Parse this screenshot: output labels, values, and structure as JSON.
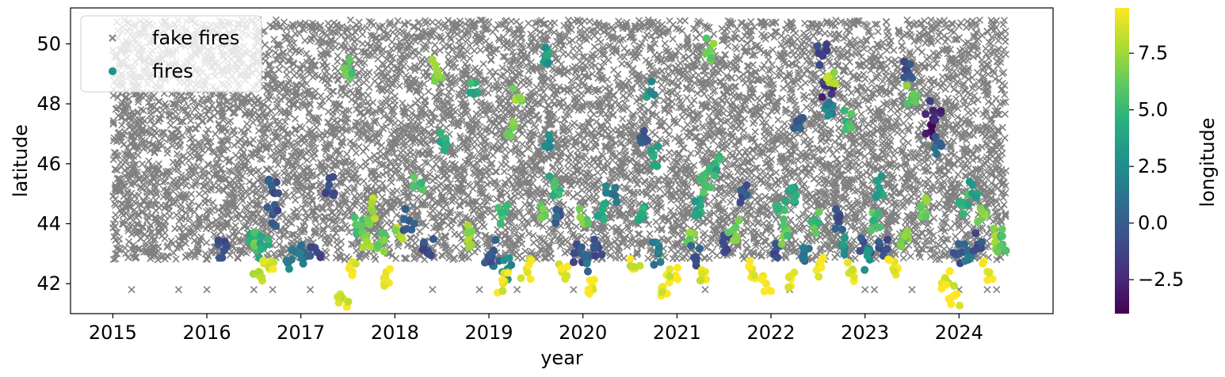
{
  "chart_data": {
    "type": "scatter",
    "xlabel": "year",
    "ylabel": "latitude",
    "xlim": [
      2014.55,
      2025.0
    ],
    "ylim": [
      41.0,
      51.2
    ],
    "x_ticks": [
      2015,
      2016,
      2017,
      2018,
      2019,
      2020,
      2021,
      2022,
      2023,
      2024
    ],
    "y_ticks": [
      42,
      44,
      46,
      48,
      50
    ],
    "legend_position": "top-left",
    "grid": false,
    "series": [
      {
        "name": "fake fires",
        "marker": "x",
        "color": "#808080",
        "count_estimate": 9000,
        "x_range": [
          2015.0,
          2024.5
        ],
        "y_range": [
          41.8,
          50.8
        ],
        "points": [
          [
            2015.2,
            41.8
          ],
          [
            2015.7,
            41.8
          ],
          [
            2016.0,
            41.8
          ],
          [
            2016.5,
            41.8
          ],
          [
            2016.7,
            41.8
          ],
          [
            2017.1,
            41.8
          ],
          [
            2018.4,
            41.8
          ],
          [
            2018.9,
            41.8
          ],
          [
            2019.3,
            41.8
          ],
          [
            2019.9,
            41.8
          ],
          [
            2021.3,
            41.8
          ],
          [
            2022.2,
            41.8
          ],
          [
            2023.0,
            41.8
          ],
          [
            2023.1,
            41.8
          ],
          [
            2023.5,
            41.8
          ],
          [
            2024.0,
            41.8
          ],
          [
            2024.3,
            41.8
          ],
          [
            2024.4,
            41.8
          ],
          [
            2015.1,
            50.4
          ],
          [
            2016.3,
            49.9
          ],
          [
            2017.5,
            48.8
          ],
          [
            2018.2,
            47.3
          ],
          [
            2019.5,
            46.2
          ],
          [
            2020.1,
            45.3
          ],
          [
            2021.4,
            44.6
          ],
          [
            2022.3,
            43.8
          ],
          [
            2023.6,
            47.9
          ],
          [
            2024.2,
            49.6
          ]
        ]
      },
      {
        "name": "fires",
        "marker": "o",
        "color_by": "longitude",
        "points": [
          [
            2016.18,
            43.1,
            -0.5
          ],
          [
            2016.5,
            43.3,
            5.0
          ],
          [
            2016.55,
            43.4,
            6.0
          ],
          [
            2016.6,
            43.2,
            4.0
          ],
          [
            2016.7,
            45.1,
            -0.5
          ],
          [
            2016.7,
            44.3,
            -0.5
          ],
          [
            2016.55,
            42.4,
            8.5
          ],
          [
            2016.65,
            42.6,
            9.0
          ],
          [
            2016.9,
            42.8,
            1.5
          ],
          [
            2017.05,
            42.9,
            1.0
          ],
          [
            2017.15,
            43.2,
            -0.8
          ],
          [
            2017.3,
            45.3,
            -0.6
          ],
          [
            2017.45,
            41.5,
            9.0
          ],
          [
            2017.55,
            42.4,
            9.3
          ],
          [
            2017.6,
            43.9,
            5.5
          ],
          [
            2017.7,
            43.6,
            7.0
          ],
          [
            2017.5,
            49.2,
            5.8
          ],
          [
            2017.75,
            44.5,
            7.5
          ],
          [
            2017.9,
            42.2,
            9.0
          ],
          [
            2017.85,
            43.4,
            6.5
          ],
          [
            2018.05,
            43.6,
            7.5
          ],
          [
            2018.15,
            44.1,
            -0.3
          ],
          [
            2018.25,
            45.3,
            5.5
          ],
          [
            2018.35,
            43.1,
            -0.6
          ],
          [
            2018.45,
            49.1,
            7.5
          ],
          [
            2018.5,
            46.7,
            4.5
          ],
          [
            2018.8,
            43.6,
            7.8
          ],
          [
            2018.85,
            48.7,
            4.5
          ],
          [
            2019.0,
            42.8,
            0.8
          ],
          [
            2019.05,
            43.1,
            -0.4
          ],
          [
            2019.15,
            44.4,
            5.5
          ],
          [
            2019.2,
            42.5,
            2.5
          ],
          [
            2019.25,
            47.2,
            6.5
          ],
          [
            2019.3,
            48.2,
            7.0
          ],
          [
            2019.15,
            42.0,
            9.2
          ],
          [
            2019.4,
            42.5,
            9.0
          ],
          [
            2019.55,
            44.6,
            6.0
          ],
          [
            2019.6,
            49.6,
            3.5
          ],
          [
            2019.65,
            46.8,
            2.5
          ],
          [
            2019.7,
            45.2,
            4.8
          ],
          [
            2019.75,
            44.3,
            0.0
          ],
          [
            2019.8,
            42.5,
            9.1
          ],
          [
            2019.95,
            43.1,
            -0.6
          ],
          [
            2020.0,
            44.1,
            6.5
          ],
          [
            2020.05,
            42.8,
            1.0
          ],
          [
            2020.1,
            41.9,
            9.3
          ],
          [
            2020.15,
            43.3,
            -0.5
          ],
          [
            2020.2,
            44.3,
            4.0
          ],
          [
            2020.3,
            45.0,
            1.5
          ],
          [
            2020.55,
            42.5,
            9.0
          ],
          [
            2020.6,
            44.2,
            4.5
          ],
          [
            2020.65,
            47.1,
            -0.6
          ],
          [
            2020.7,
            48.4,
            3.0
          ],
          [
            2020.75,
            46.3,
            4.0
          ],
          [
            2020.8,
            43.0,
            1.5
          ],
          [
            2020.85,
            41.9,
            9.2
          ],
          [
            2020.95,
            42.2,
            9.1
          ],
          [
            2021.15,
            43.7,
            6.5
          ],
          [
            2021.2,
            42.9,
            -0.5
          ],
          [
            2021.25,
            44.6,
            4.0
          ],
          [
            2021.3,
            45.3,
            5.5
          ],
          [
            2021.35,
            49.8,
            6.5
          ],
          [
            2021.3,
            42.4,
            9.0
          ],
          [
            2021.4,
            46.0,
            4.5
          ],
          [
            2021.5,
            43.3,
            -0.7
          ],
          [
            2021.6,
            43.8,
            6.5
          ],
          [
            2021.7,
            44.9,
            -0.5
          ],
          [
            2021.8,
            42.5,
            9.2
          ],
          [
            2021.95,
            42.0,
            9.3
          ],
          [
            2022.05,
            43.1,
            -0.6
          ],
          [
            2022.1,
            44.5,
            5.0
          ],
          [
            2022.15,
            43.7,
            6.0
          ],
          [
            2022.2,
            42.2,
            9.0
          ],
          [
            2022.25,
            45.0,
            4.0
          ],
          [
            2022.3,
            47.4,
            -0.5
          ],
          [
            2022.35,
            43.0,
            1.0
          ],
          [
            2022.45,
            44.0,
            5.5
          ],
          [
            2022.5,
            42.5,
            9.2
          ],
          [
            2022.55,
            49.6,
            -1.5
          ],
          [
            2022.6,
            48.6,
            -2.0
          ],
          [
            2022.6,
            47.9,
            2.0
          ],
          [
            2022.65,
            48.9,
            7.5
          ],
          [
            2022.7,
            44.2,
            -0.5
          ],
          [
            2022.75,
            43.3,
            3.0
          ],
          [
            2022.8,
            47.4,
            5.0
          ],
          [
            2022.85,
            42.4,
            9.0
          ],
          [
            2023.0,
            43.2,
            -0.5
          ],
          [
            2023.05,
            42.8,
            2.5
          ],
          [
            2023.1,
            44.0,
            5.5
          ],
          [
            2023.15,
            45.2,
            3.5
          ],
          [
            2023.2,
            43.1,
            -0.8
          ],
          [
            2023.3,
            42.5,
            9.0
          ],
          [
            2023.4,
            43.6,
            6.5
          ],
          [
            2023.45,
            49.1,
            -0.6
          ],
          [
            2023.5,
            48.2,
            6.5
          ],
          [
            2023.6,
            44.6,
            6.5
          ],
          [
            2023.7,
            47.3,
            -3.0
          ],
          [
            2023.75,
            47.7,
            -2.0
          ],
          [
            2023.8,
            46.7,
            0.5
          ],
          [
            2023.85,
            42.2,
            9.2
          ],
          [
            2023.95,
            41.6,
            9.2
          ],
          [
            2024.0,
            43.0,
            -0.5
          ],
          [
            2024.05,
            44.6,
            5.5
          ],
          [
            2024.1,
            42.8,
            1.0
          ],
          [
            2024.15,
            45.0,
            4.0
          ],
          [
            2024.2,
            43.3,
            -0.6
          ],
          [
            2024.25,
            44.2,
            6.5
          ],
          [
            2024.3,
            42.4,
            9.1
          ],
          [
            2024.4,
            43.5,
            7.0
          ],
          [
            2024.45,
            43.2,
            5.5
          ]
        ]
      }
    ],
    "legend": [
      {
        "label": "fake fires",
        "marker": "x"
      },
      {
        "label": "fires",
        "marker": "o"
      }
    ],
    "colorbar": {
      "label": "longitude",
      "range": [
        -4.0,
        9.5
      ],
      "ticks": [
        -2.5,
        0.0,
        2.5,
        5.0,
        7.5
      ],
      "tick_labels": [
        "−2.5",
        "0.0",
        "2.5",
        "5.0",
        "7.5"
      ],
      "colormap": "viridis",
      "colors": [
        "#440154",
        "#472d7b",
        "#3b528b",
        "#2c728e",
        "#21918c",
        "#28ae80",
        "#5ec962",
        "#addc30",
        "#fde725"
      ]
    }
  }
}
